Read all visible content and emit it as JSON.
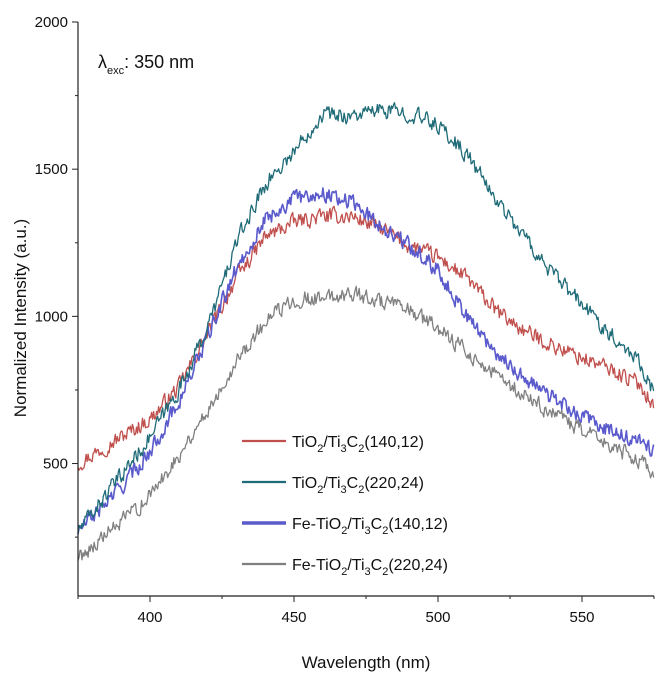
{
  "chart_data": {
    "type": "line",
    "title": "",
    "xlabel": "Wavelength (nm)",
    "ylabel": "Normalized Intensity (a.u.)",
    "xlim": [
      375,
      575
    ],
    "ylim": [
      50,
      2000
    ],
    "x_ticks": [
      400,
      450,
      500,
      550
    ],
    "y_ticks": [
      500,
      1000,
      1500,
      2000
    ],
    "grid": false,
    "legend_position": "bottom-center",
    "annotation": {
      "lambda": "λ",
      "subscript": "exc",
      "rest": ": 350 nm"
    },
    "x": [
      375,
      390,
      400,
      410,
      420,
      430,
      440,
      450,
      460,
      470,
      480,
      490,
      500,
      510,
      520,
      530,
      540,
      550,
      560,
      570,
      575
    ],
    "series": [
      {
        "name_parts": [
          "TiO",
          "2",
          "/Ti",
          "3",
          "C",
          "2",
          "(140,12)"
        ],
        "color": "#c0504d",
        "values": [
          500,
          590,
          650,
          760,
          940,
          1130,
          1270,
          1320,
          1340,
          1340,
          1300,
          1240,
          1200,
          1130,
          1020,
          950,
          900,
          860,
          820,
          770,
          700
        ]
      },
      {
        "name_parts": [
          "TiO",
          "2",
          "/Ti",
          "3",
          "C",
          "2",
          "(220,24)"
        ],
        "color": "#1f6b78",
        "values": [
          270,
          460,
          590,
          750,
          960,
          1250,
          1450,
          1560,
          1690,
          1680,
          1700,
          1690,
          1650,
          1550,
          1400,
          1270,
          1140,
          1040,
          940,
          850,
          740
        ]
      },
      {
        "name_parts": [
          "Fe-TiO",
          "2",
          "/Ti",
          "3",
          "C",
          "2",
          "(140,12)"
        ],
        "color": "#5a5acc",
        "values": [
          270,
          420,
          540,
          710,
          930,
          1160,
          1330,
          1400,
          1420,
          1390,
          1310,
          1240,
          1160,
          1000,
          880,
          790,
          720,
          660,
          610,
          570,
          550
        ]
      },
      {
        "name_parts": [
          "Fe-TiO",
          "2",
          "/Ti",
          "3",
          "C",
          "2",
          "(220,24)"
        ],
        "color": "#808080",
        "values": [
          180,
          300,
          390,
          530,
          680,
          850,
          980,
          1060,
          1060,
          1080,
          1050,
          1020,
          960,
          880,
          800,
          730,
          670,
          610,
          560,
          510,
          470
        ]
      }
    ]
  }
}
